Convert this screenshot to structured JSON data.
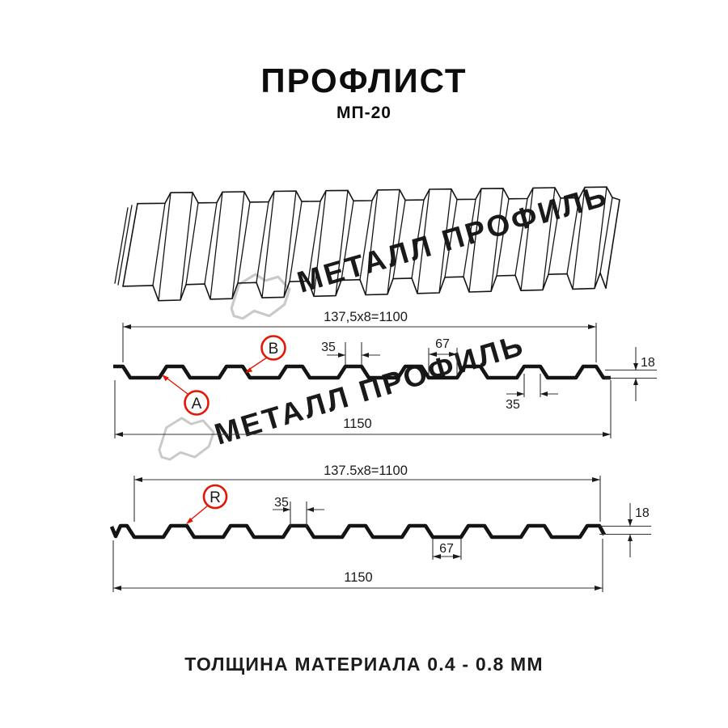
{
  "header": {
    "title": "ПРОФЛИСТ",
    "subtitle": "МП-20"
  },
  "watermark": {
    "text": "МЕТАЛЛ ПРОФИЛЬ"
  },
  "p1": {
    "dim_module": "137,5x8=1100",
    "dim_total": "1150",
    "dim_rib_top": "35",
    "dim_pan": "67",
    "dim_rib_bottom": "35",
    "dim_height": "18",
    "label_a": "A",
    "label_b": "B"
  },
  "p2": {
    "dim_module": "137.5x8=1100",
    "dim_total": "1150",
    "dim_rib_top": "35",
    "dim_pan": "67",
    "dim_height": "18",
    "label_r": "R"
  },
  "footer": {
    "text": "ТОЛЩИНА МАТЕРИАЛА 0.4 - 0.8 ММ"
  },
  "colors": {
    "accent_red": "#e51505",
    "line": "#141414",
    "watermark": "#c9c9c9"
  }
}
